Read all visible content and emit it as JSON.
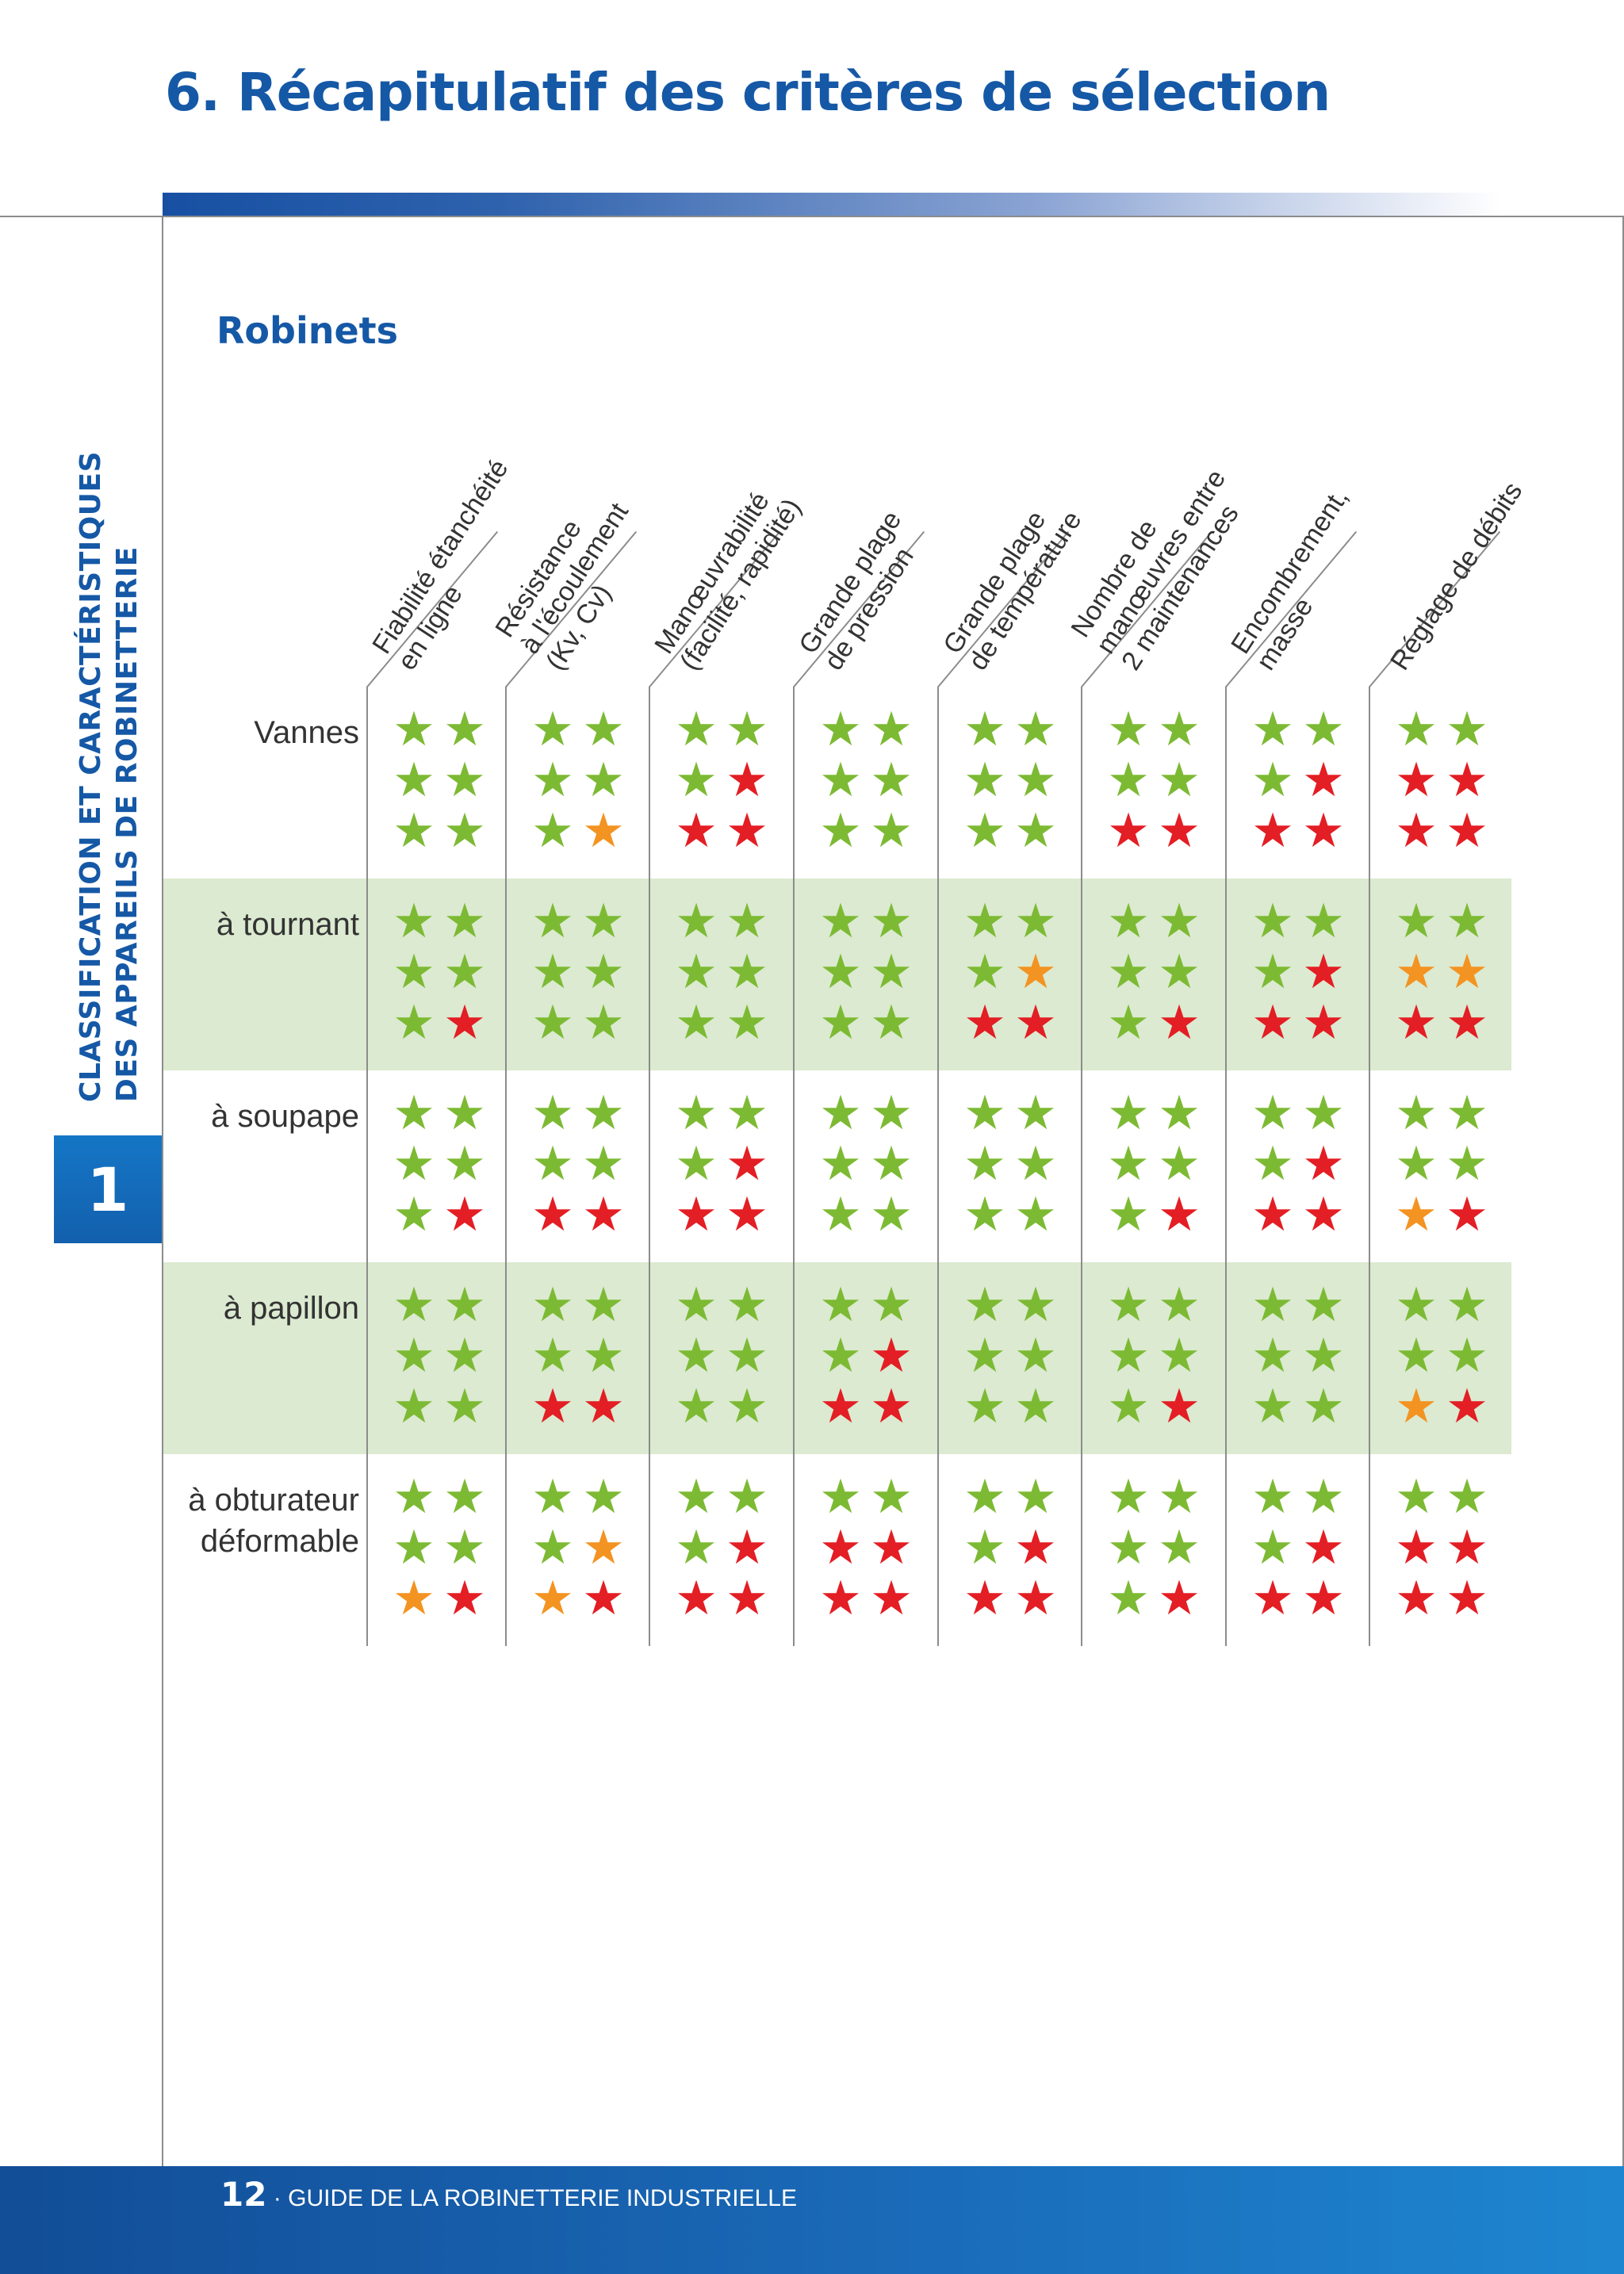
{
  "header": {
    "title": "6. Récapitulatif des critères de sélection"
  },
  "sidebar": {
    "line1": "CLASSIFICATION ET CARACTÉRISTIQUES",
    "line2": "DES APPAREILS DE ROBINETTERIE",
    "chapter_number": "1"
  },
  "section": {
    "title": "Robinets"
  },
  "colors": {
    "green": "#7dba34",
    "red": "#e31e24",
    "orange": "#f39321",
    "band": "#dbead0",
    "brand": "#1558a6"
  },
  "columns": [
    {
      "lines": [
        "Fiabilité étanchéité",
        "en ligne"
      ]
    },
    {
      "lines": [
        "Résistance",
        "à l'écoulement",
        "(Kv, Cv)"
      ]
    },
    {
      "lines": [
        "Manœuvrabilité",
        "(facilité, rapidité)"
      ]
    },
    {
      "lines": [
        "Grande plage",
        "de pression"
      ]
    },
    {
      "lines": [
        "Grande plage",
        "de température"
      ]
    },
    {
      "lines": [
        "Nombre de",
        "manœuvres entre",
        "2 maintenances"
      ]
    },
    {
      "lines": [
        "Encombrement,",
        "masse"
      ]
    },
    {
      "lines": [
        "Réglage de débits"
      ]
    }
  ],
  "rows": [
    {
      "label": [
        "Vannes"
      ],
      "banded": false,
      "cells": [
        [
          "gggggg"
        ],
        [
          "gggggo"
        ],
        [
          "gggrrr"
        ],
        [
          "gggggg"
        ],
        [
          "gggggg"
        ],
        [
          "ggggrr"
        ],
        [
          "gggrrr"
        ],
        [
          "ggrrrr"
        ]
      ]
    },
    {
      "label": [
        "à tournant"
      ],
      "banded": true,
      "cells": [
        [
          "gggggr"
        ],
        [
          "gggggg"
        ],
        [
          "gggggg"
        ],
        [
          "gggggg"
        ],
        [
          "gggorr"
        ],
        [
          "gggggr"
        ],
        [
          "gggrrr"
        ],
        [
          "ggoorr"
        ]
      ]
    },
    {
      "label": [
        "à soupape"
      ],
      "banded": false,
      "cells": [
        [
          "gggggr"
        ],
        [
          "ggggrr"
        ],
        [
          "gggrrr"
        ],
        [
          "gggggg"
        ],
        [
          "gggggg"
        ],
        [
          "gggggr"
        ],
        [
          "gggrrr"
        ],
        [
          "ggggor"
        ]
      ]
    },
    {
      "label": [
        "à papillon"
      ],
      "banded": true,
      "cells": [
        [
          "gggggg"
        ],
        [
          "ggggrr"
        ],
        [
          "gggggg"
        ],
        [
          "gggrrr"
        ],
        [
          "gggggg"
        ],
        [
          "gggggr"
        ],
        [
          "gggggg"
        ],
        [
          "ggggor"
        ]
      ]
    },
    {
      "label": [
        "à obturateur",
        "déformable"
      ],
      "banded": false,
      "cells": [
        [
          "ggggor"
        ],
        [
          "gggoor"
        ],
        [
          "gggrrr"
        ],
        [
          "ggrrrr"
        ],
        [
          "gggrrr"
        ],
        [
          "gggggr"
        ],
        [
          "gggrrr"
        ],
        [
          "ggrrrr"
        ]
      ]
    }
  ],
  "footer": {
    "page_number": "12",
    "separator": "·",
    "text": "GUIDE DE LA ROBINETTERIE INDUSTRIELLE"
  }
}
